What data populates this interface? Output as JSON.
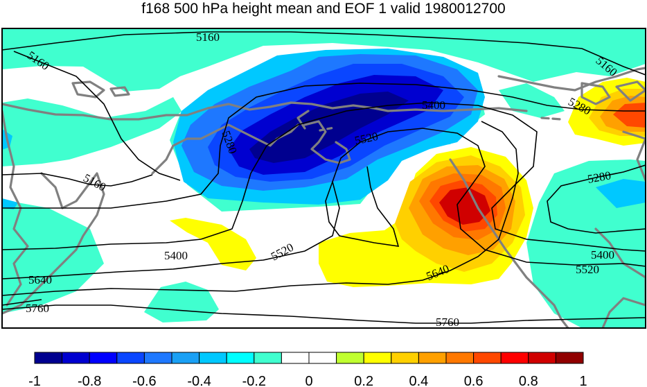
{
  "title": "f168 500 hPa height mean and EOF 1 valid 1980012700",
  "contour_labels": [
    "5160",
    "5160",
    "5160",
    "5160",
    "5280",
    "5280",
    "5280",
    "5400",
    "5400",
    "5400",
    "5520",
    "5520",
    "5520",
    "5640",
    "5640",
    "5760",
    "5760"
  ],
  "colorbar": {
    "colors": [
      "#00008f",
      "#0000d0",
      "#0000ff",
      "#0a46ff",
      "#1e78ff",
      "#1aa0f5",
      "#00c8ff",
      "#00ffff",
      "#40ffcf",
      "#ffffff",
      "#ffffff",
      "#c0ff30",
      "#ffff00",
      "#ffd000",
      "#ffa000",
      "#ff7800",
      "#ff4800",
      "#ff0000",
      "#d00000",
      "#900000"
    ],
    "tick_labels": [
      "-1",
      "-0.8",
      "-0.6",
      "-0.4",
      "-0.2",
      "0",
      "0.2",
      "0.4",
      "0.6",
      "0.8",
      "1"
    ]
  }
}
